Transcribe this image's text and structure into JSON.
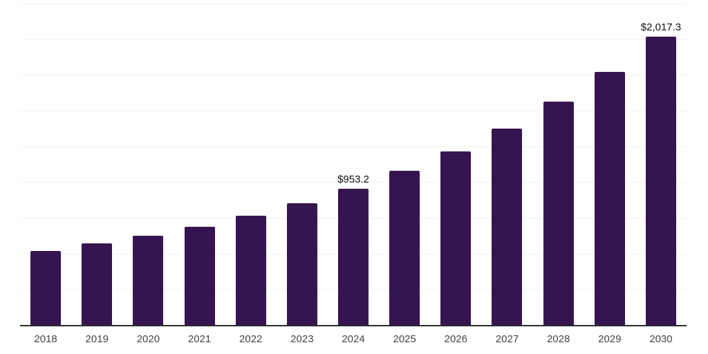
{
  "chart_data": {
    "type": "bar",
    "title": "",
    "categories": [
      "2018",
      "2019",
      "2020",
      "2021",
      "2022",
      "2023",
      "2024",
      "2025",
      "2026",
      "2027",
      "2028",
      "2029",
      "2030"
    ],
    "values": [
      516,
      570,
      625,
      689,
      767,
      852,
      953.2,
      1080,
      1217,
      1372,
      1561,
      1771,
      2017.3
    ],
    "data_labels": [
      null,
      null,
      null,
      null,
      null,
      null,
      "$953.2",
      null,
      null,
      null,
      null,
      null,
      "$2,017.3"
    ],
    "xlabel": "",
    "ylabel": "",
    "ylim": [
      0,
      2250
    ],
    "gridline_step": 250,
    "grid": "horizontal",
    "y_axis_labels_visible": false,
    "legend_position": "none"
  },
  "style": {
    "background": "#ffffff",
    "bar_color": "#361450",
    "axis_line_color": "#2b2b2b",
    "gridline_color": "#f2f2f2",
    "x_label_color": "#444444",
    "data_label_color": "#111111"
  }
}
